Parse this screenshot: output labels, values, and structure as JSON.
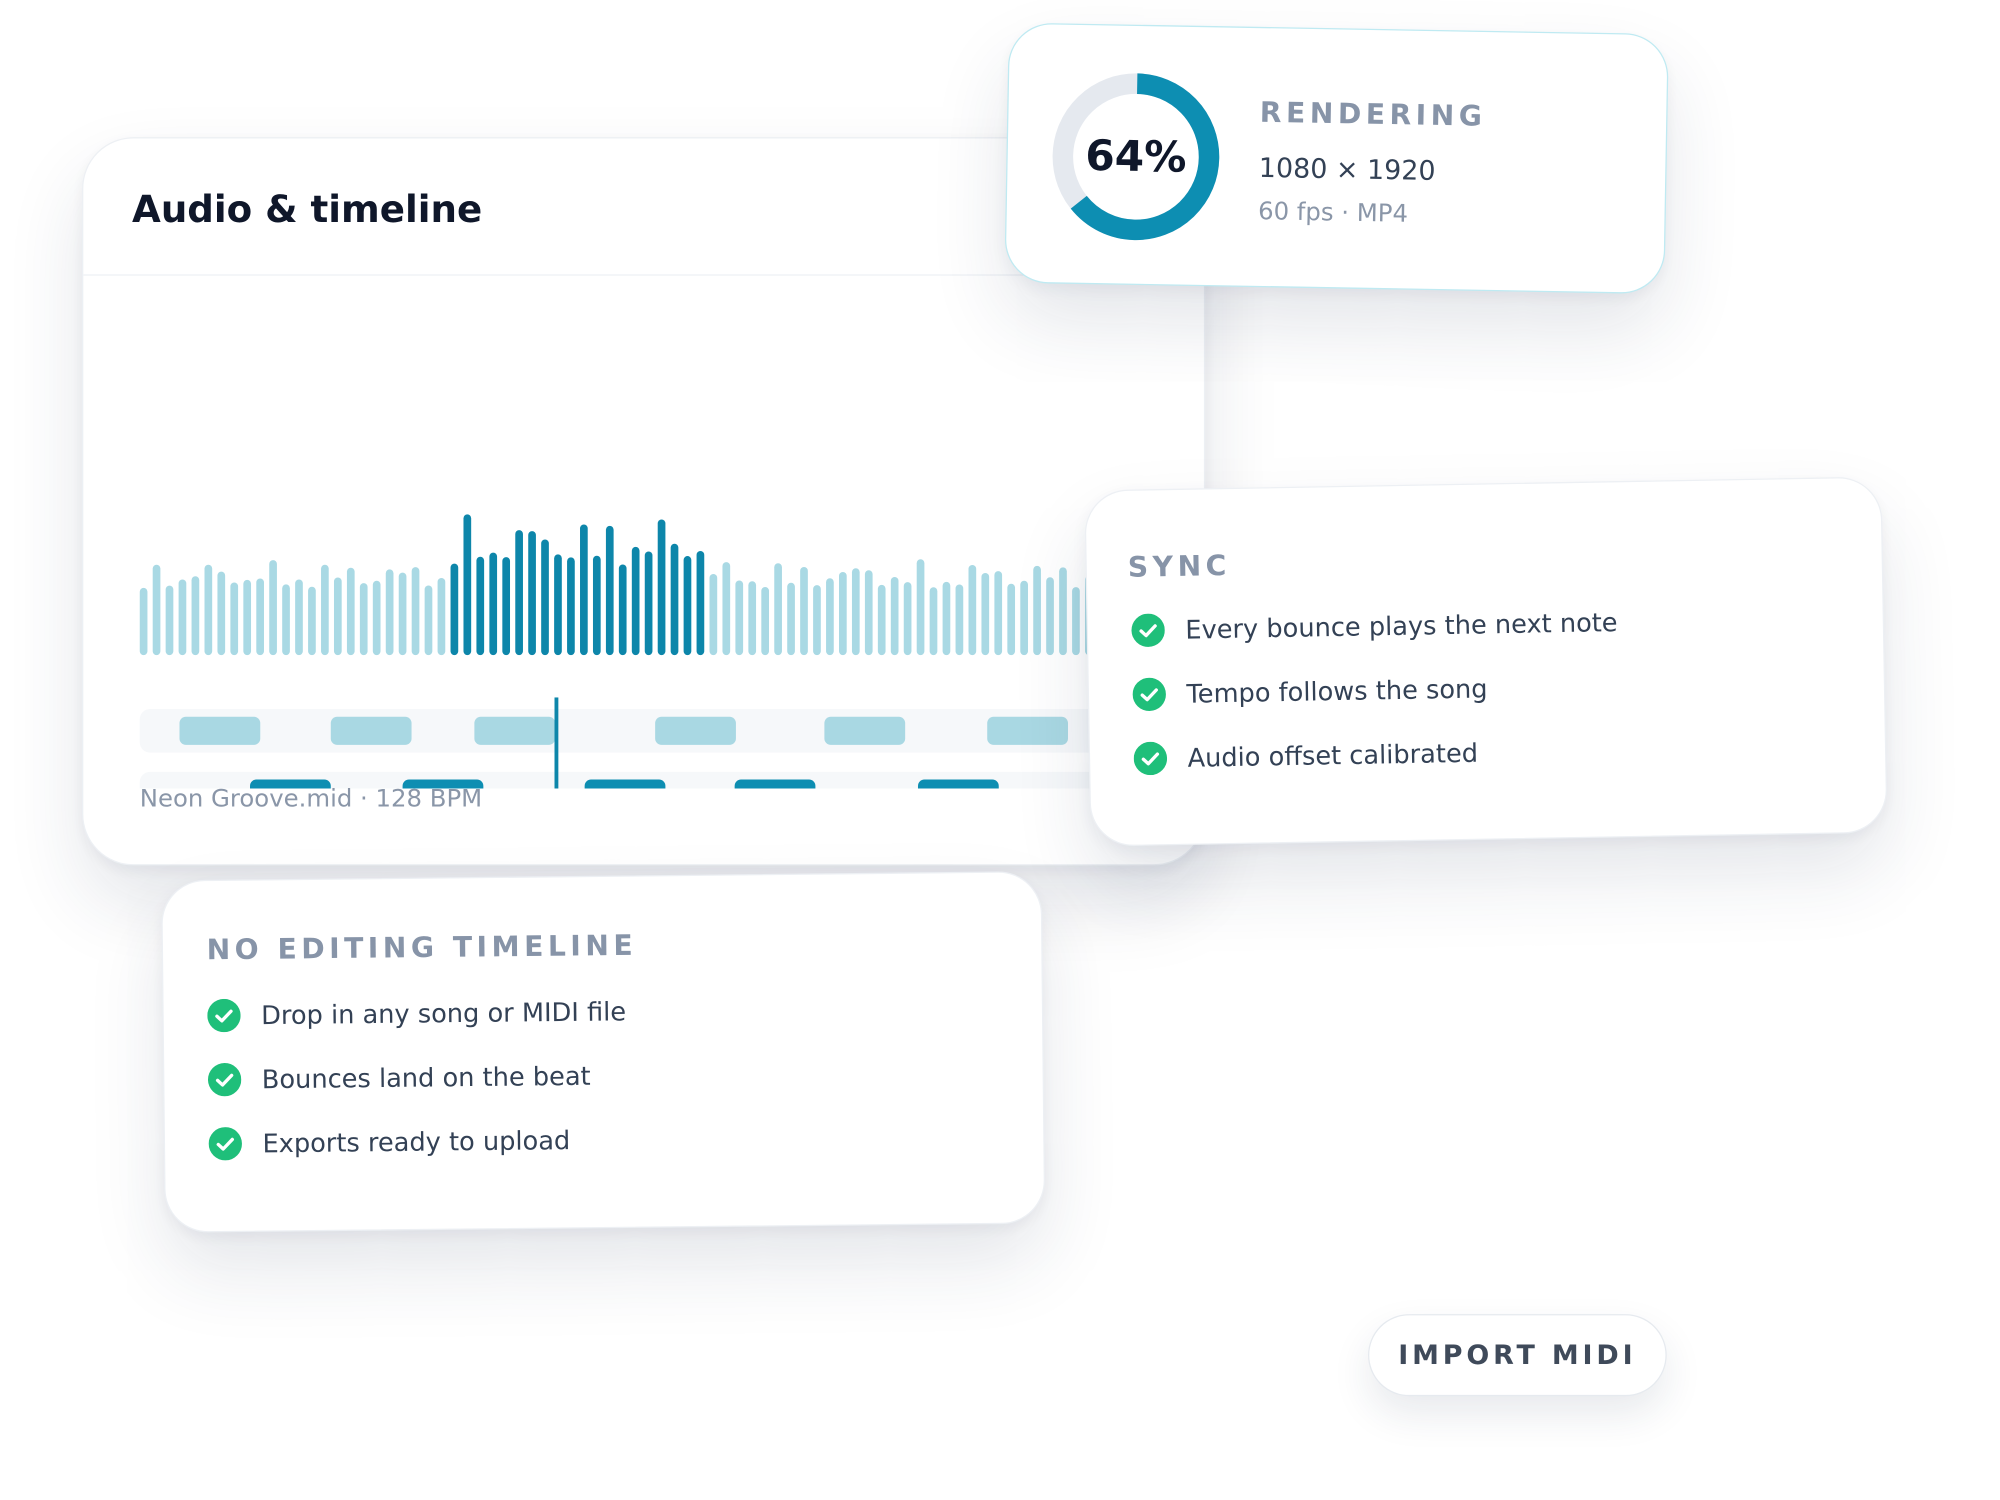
{
  "main_card": {
    "title": "Audio & timeline",
    "footer": "Neon Groove.mid · 128 BPM"
  },
  "render_card": {
    "progress": {
      "value": 64,
      "label": "64%"
    },
    "heading": "RENDERING",
    "resolution": "1080 × 1920",
    "format": "60 fps · MP4"
  },
  "sync_card": {
    "heading": "SYNC",
    "items": [
      "Every bounce plays the next note",
      "Tempo follows the song",
      "Audio offset calibrated"
    ]
  },
  "editing_card": {
    "heading": "NO EDITING TIMELINE",
    "items": [
      "Drop in any song or MIDI file",
      "Bounces land on the beat",
      "Exports ready to upload"
    ]
  },
  "button": {
    "label": "IMPORT MIDI"
  }
}
